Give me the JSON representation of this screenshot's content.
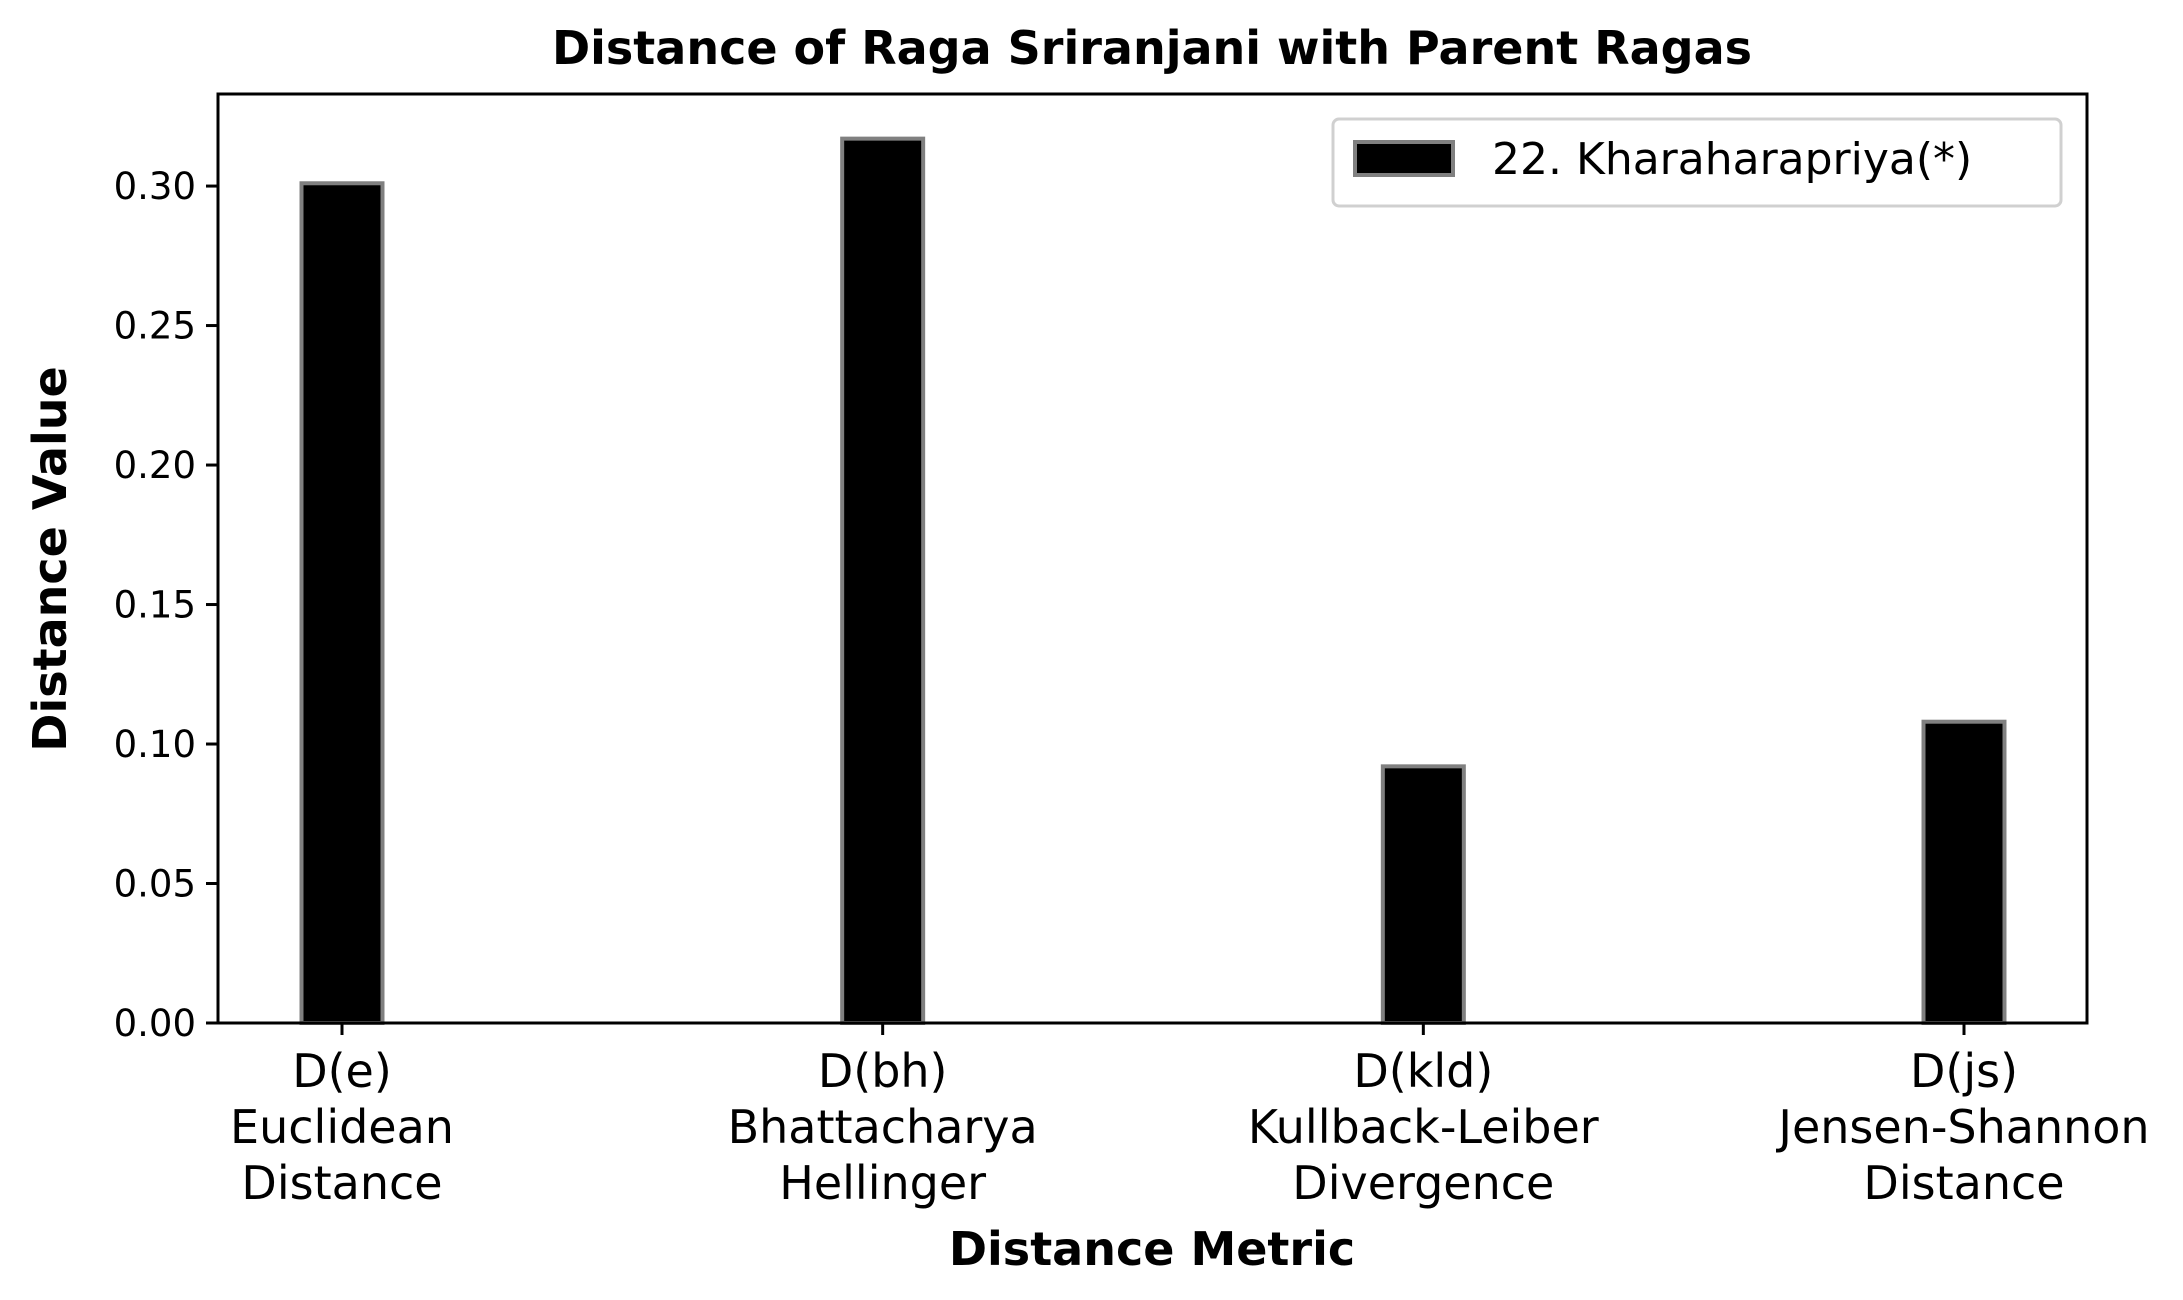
{
  "chart_data": {
    "type": "bar",
    "title": "Distance of Raga Sriranjani with Parent Ragas",
    "xlabel": "Distance Metric",
    "ylabel": "Distance Value",
    "categories": [
      [
        "D(e)",
        "Euclidean",
        "Distance"
      ],
      [
        "D(bh)",
        "Bhattacharya",
        "Hellinger"
      ],
      [
        "D(kld)",
        "Kullback-Leiber",
        "Divergence"
      ],
      [
        "D(js)",
        "Jensen-Shannon",
        "Distance"
      ]
    ],
    "series": [
      {
        "name": "22. Kharaharapriya(*)",
        "values": [
          0.301,
          0.317,
          0.092,
          0.108
        ],
        "color": "#000000",
        "edge_color": "#808080"
      }
    ],
    "ylim": [
      0,
      0.333
    ],
    "yticks": [
      "0.00",
      "0.05",
      "0.10",
      "0.15",
      "0.20",
      "0.25",
      "0.30"
    ],
    "ytick_values": [
      0,
      0.05,
      0.1,
      0.15,
      0.2,
      0.25,
      0.3
    ],
    "grid": false,
    "legend_position": "top-right"
  }
}
